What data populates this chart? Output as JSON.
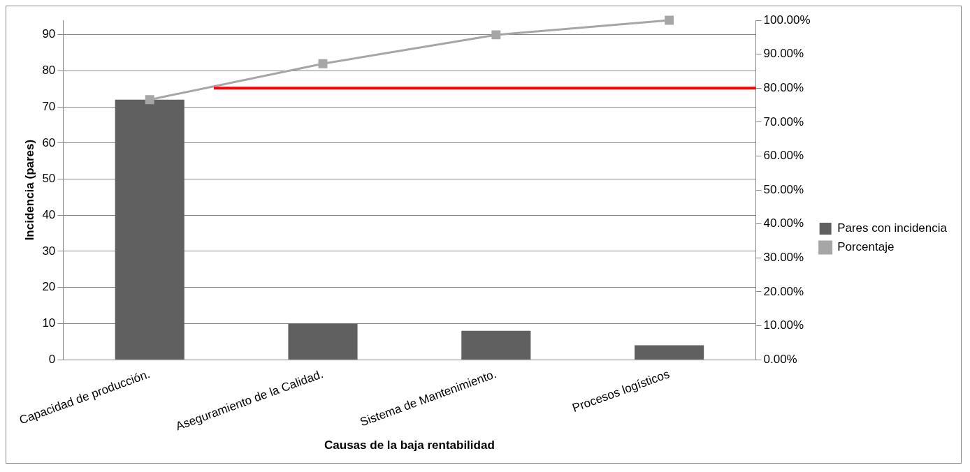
{
  "chart_data": {
    "type": "bar",
    "xlabel": "Causas de la baja rentabilidad",
    "ylabel": "Incidencia (pares)",
    "categories": [
      "Capacidad de producción.",
      "Aseguramiento de la Calidad.",
      "Sistema de Mantenimiento.",
      "Procesos logísticos"
    ],
    "series": [
      {
        "name": "Pares con incidencia",
        "color": "#606060",
        "values": [
          72,
          10,
          8,
          4
        ]
      },
      {
        "name": "Porcentaje",
        "type": "line",
        "axis": "y2",
        "color": "#a6a6a6",
        "values": [
          76.6,
          87.2,
          95.7,
          100
        ]
      }
    ],
    "ylim": [
      0,
      94
    ],
    "yticks": [
      0,
      10,
      20,
      30,
      40,
      50,
      60,
      70,
      80,
      90
    ],
    "y2lim": [
      0,
      100
    ],
    "y2ticks": [
      {
        "value": 0,
        "label": "0.00%"
      },
      {
        "value": 10,
        "label": "10.00%"
      },
      {
        "value": 20,
        "label": "20.00%"
      },
      {
        "value": 30,
        "label": "30.00%"
      },
      {
        "value": 40,
        "label": "40.00%"
      },
      {
        "value": 50,
        "label": "50.00%"
      },
      {
        "value": 60,
        "label": "60.00%"
      },
      {
        "value": 70,
        "label": "70.00%"
      },
      {
        "value": 80,
        "label": "80.00%"
      },
      {
        "value": 90,
        "label": "90.00%"
      },
      {
        "value": 100,
        "label": "100.00%"
      }
    ],
    "ref_lines": [
      {
        "axis": "y2",
        "value": 80,
        "color": "#ff0000"
      }
    ],
    "grid": "y",
    "legend": "right",
    "marker": "square"
  }
}
